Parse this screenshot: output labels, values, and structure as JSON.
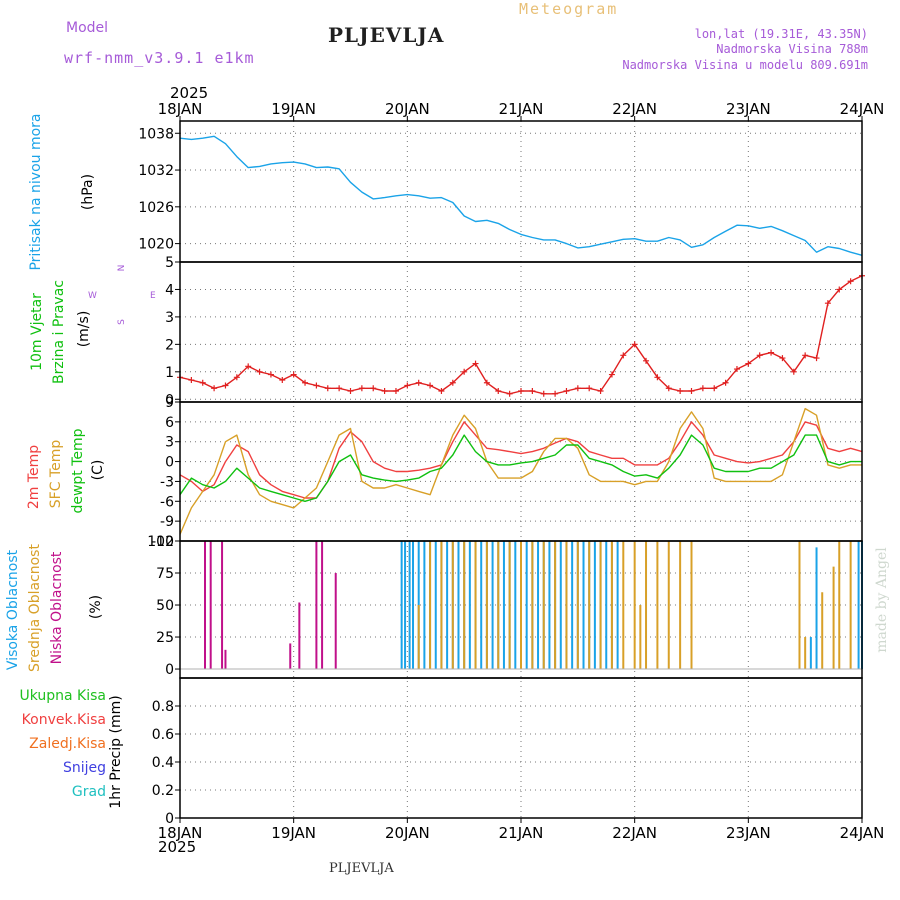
{
  "header": {
    "model_label": "Model",
    "model_name": "wrf-nmm_v3.9.1 e1km",
    "station": "PLJEVLJA",
    "product": "Meteogram",
    "lonlat": "lon,lat (19.31E, 43.35N)",
    "elevation": "Nadmorska Visina 788m",
    "model_elevation": "Nadmorska Visina u modelu 809.691m",
    "year_top": "2025",
    "year_bottom": "2025",
    "footer_station": "PLJEVLJA",
    "credit": "made by Angel"
  },
  "colors": {
    "pressure": "#1aa3e8",
    "t2m": "#f04040",
    "sfc": "#d8a028",
    "dewpt": "#10c010",
    "high_cloud": "#1aa3e8",
    "mid_cloud": "#d8a028",
    "low_cloud": "#c0108a",
    "wind_speed": "#e02020",
    "total_precip": "#20c020",
    "conv_precip": "#f04040",
    "frozen_precip": "#f07020",
    "snow": "#4040e0",
    "graupel": "#20c0c0"
  },
  "chart_data": [
    {
      "type": "line",
      "panel": "pressure",
      "ylabel_main": "Pritisak na nivou mora",
      "unit": "(hPa)",
      "x_ticks": [
        "18JAN",
        "19JAN",
        "20JAN",
        "21JAN",
        "22JAN",
        "23JAN",
        "24JAN"
      ],
      "xlim_days": [
        0,
        6
      ],
      "ylim": [
        1017,
        1040
      ],
      "y_ticks": [
        1020,
        1026,
        1032,
        1038
      ],
      "grid": true,
      "series": [
        {
          "key": "pressure",
          "x": [
            0,
            0.1,
            0.2,
            0.3,
            0.4,
            0.5,
            0.6,
            0.7,
            0.8,
            0.9,
            1.0,
            1.1,
            1.2,
            1.3,
            1.4,
            1.5,
            1.6,
            1.7,
            1.8,
            1.9,
            2.0,
            2.1,
            2.2,
            2.3,
            2.4,
            2.5,
            2.6,
            2.7,
            2.8,
            2.9,
            3.0,
            3.1,
            3.2,
            3.3,
            3.4,
            3.5,
            3.6,
            3.7,
            3.8,
            3.9,
            4.0,
            4.1,
            4.2,
            4.3,
            4.4,
            4.5,
            4.6,
            4.7,
            4.8,
            4.9,
            5.0,
            5.1,
            5.2,
            5.3,
            5.4,
            5.5,
            5.6,
            5.7,
            5.8,
            5.9,
            6.0
          ],
          "y": [
            1037.2,
            1037,
            1037.2,
            1037.5,
            1036.3,
            1034.2,
            1032.4,
            1032.6,
            1033,
            1033.2,
            1033.3,
            1033,
            1032.4,
            1032.5,
            1032.2,
            1030,
            1028.4,
            1027.3,
            1027.5,
            1027.8,
            1028,
            1027.8,
            1027.4,
            1027.5,
            1026.7,
            1024.5,
            1023.6,
            1023.8,
            1023.3,
            1022.3,
            1021.5,
            1021,
            1020.6,
            1020.6,
            1020,
            1019.3,
            1019.5,
            1019.9,
            1020.3,
            1020.7,
            1020.8,
            1020.4,
            1020.4,
            1021,
            1020.6,
            1019.4,
            1019.8,
            1021,
            1022,
            1023,
            1022.9,
            1022.5,
            1022.8,
            1022.1,
            1021.3,
            1020.5,
            1018.6,
            1019.5,
            1019.2,
            1018.6,
            1018.1
          ]
        }
      ]
    },
    {
      "type": "line",
      "panel": "wind",
      "ylabel_main": "10m Vjetar",
      "ylabel_sub": "Brzina i Pravac",
      "unit": "(m/s)",
      "compass": {
        "north": "N",
        "south": "S",
        "east": "E",
        "west": "W"
      },
      "ylim": [
        -0.1,
        5
      ],
      "y_ticks": [
        0,
        1,
        2,
        3,
        4,
        5
      ],
      "grid": true,
      "series": [
        {
          "key": "wind_speed",
          "x": [
            0,
            0.1,
            0.2,
            0.3,
            0.4,
            0.5,
            0.6,
            0.7,
            0.8,
            0.9,
            1.0,
            1.1,
            1.2,
            1.3,
            1.4,
            1.5,
            1.6,
            1.7,
            1.8,
            1.9,
            2.0,
            2.1,
            2.2,
            2.3,
            2.4,
            2.5,
            2.6,
            2.7,
            2.8,
            2.9,
            3.0,
            3.1,
            3.2,
            3.3,
            3.4,
            3.5,
            3.6,
            3.7,
            3.8,
            3.9,
            4.0,
            4.1,
            4.2,
            4.3,
            4.4,
            4.5,
            4.6,
            4.7,
            4.8,
            4.9,
            5.0,
            5.1,
            5.2,
            5.3,
            5.4,
            5.5,
            5.6,
            5.7,
            5.8,
            5.9,
            6.0
          ],
          "y": [
            0.8,
            0.7,
            0.6,
            0.4,
            0.5,
            0.8,
            1.2,
            1.0,
            0.9,
            0.7,
            0.9,
            0.6,
            0.5,
            0.4,
            0.4,
            0.3,
            0.4,
            0.4,
            0.3,
            0.3,
            0.5,
            0.6,
            0.5,
            0.3,
            0.6,
            1.0,
            1.3,
            0.6,
            0.3,
            0.2,
            0.3,
            0.3,
            0.2,
            0.2,
            0.3,
            0.4,
            0.4,
            0.3,
            0.9,
            1.6,
            2.0,
            1.4,
            0.8,
            0.4,
            0.3,
            0.3,
            0.4,
            0.4,
            0.6,
            1.1,
            1.3,
            1.6,
            1.7,
            1.5,
            1.0,
            1.6,
            1.5,
            3.5,
            4.0,
            4.3,
            4.5
          ]
        }
      ]
    },
    {
      "type": "line",
      "panel": "temperature",
      "ylabels": [
        "2m Temp",
        "SFC Temp",
        "dewpt Temp"
      ],
      "unit": "(C)",
      "ylim": [
        -12,
        9
      ],
      "y_ticks": [
        -12,
        -9,
        -6,
        -3,
        0,
        3,
        6,
        9
      ],
      "grid": true,
      "series": [
        {
          "key": "t2m",
          "x": [
            0,
            0.1,
            0.2,
            0.3,
            0.4,
            0.5,
            0.6,
            0.7,
            0.8,
            0.9,
            1.0,
            1.1,
            1.2,
            1.3,
            1.4,
            1.5,
            1.6,
            1.7,
            1.8,
            1.9,
            2.0,
            2.1,
            2.2,
            2.3,
            2.4,
            2.5,
            2.6,
            2.7,
            2.8,
            2.9,
            3.0,
            3.1,
            3.2,
            3.3,
            3.4,
            3.5,
            3.6,
            3.7,
            3.8,
            3.9,
            4.0,
            4.1,
            4.2,
            4.3,
            4.4,
            4.5,
            4.6,
            4.7,
            4.8,
            4.9,
            5.0,
            5.1,
            5.2,
            5.3,
            5.4,
            5.5,
            5.6,
            5.7,
            5.8,
            5.9,
            6.0
          ],
          "y": [
            -2,
            -3,
            -4.5,
            -3.5,
            0,
            2.5,
            1.5,
            -2,
            -3.5,
            -4.5,
            -5,
            -5.5,
            -5.5,
            -3,
            2,
            4.5,
            3,
            0,
            -1,
            -1.5,
            -1.5,
            -1.3,
            -1,
            -0.5,
            3,
            6,
            4,
            2,
            1.8,
            1.5,
            1.2,
            1.5,
            2,
            2.8,
            3.5,
            3,
            1.5,
            1,
            0.5,
            0.5,
            -0.5,
            -0.5,
            -0.5,
            0.5,
            3,
            6,
            4,
            1,
            0.5,
            0,
            -0.2,
            0,
            0.5,
            1,
            3,
            6,
            5.5,
            2,
            1.5,
            2,
            1.5
          ]
        },
        {
          "key": "sfc",
          "x": [
            0,
            0.1,
            0.2,
            0.3,
            0.4,
            0.5,
            0.6,
            0.7,
            0.8,
            0.9,
            1.0,
            1.1,
            1.2,
            1.3,
            1.4,
            1.5,
            1.6,
            1.7,
            1.8,
            1.9,
            2.0,
            2.1,
            2.2,
            2.3,
            2.4,
            2.5,
            2.6,
            2.7,
            2.8,
            2.9,
            3.0,
            3.1,
            3.2,
            3.3,
            3.4,
            3.5,
            3.6,
            3.7,
            3.8,
            3.9,
            4.0,
            4.1,
            4.2,
            4.3,
            4.4,
            4.5,
            4.6,
            4.7,
            4.8,
            4.9,
            5.0,
            5.1,
            5.2,
            5.3,
            5.4,
            5.5,
            5.6,
            5.7,
            5.8,
            5.9,
            6.0
          ],
          "y": [
            -11,
            -7,
            -4.5,
            -2,
            3,
            4,
            -2,
            -5,
            -6,
            -6.5,
            -7,
            -5.5,
            -4,
            0,
            4,
            5,
            -3,
            -4,
            -4,
            -3.5,
            -4,
            -4.5,
            -5,
            -0.5,
            4,
            7,
            5,
            0,
            -2.5,
            -2.5,
            -2.5,
            -1.5,
            1.5,
            3.5,
            3.5,
            2,
            -2,
            -3,
            -3,
            -3,
            -3.5,
            -3,
            -3,
            0,
            5,
            7.5,
            5,
            -2.5,
            -3,
            -3,
            -3,
            -3,
            -3,
            -2,
            3,
            8,
            7,
            -0.5,
            -1,
            -0.5,
            -0.5
          ]
        },
        {
          "key": "dewpt",
          "x": [
            0,
            0.1,
            0.2,
            0.3,
            0.4,
            0.5,
            0.6,
            0.7,
            0.8,
            0.9,
            1.0,
            1.1,
            1.2,
            1.3,
            1.4,
            1.5,
            1.6,
            1.7,
            1.8,
            1.9,
            2.0,
            2.1,
            2.2,
            2.3,
            2.4,
            2.5,
            2.6,
            2.7,
            2.8,
            2.9,
            3.0,
            3.1,
            3.2,
            3.3,
            3.4,
            3.5,
            3.6,
            3.7,
            3.8,
            3.9,
            4.0,
            4.1,
            4.2,
            4.3,
            4.4,
            4.5,
            4.6,
            4.7,
            4.8,
            4.9,
            5.0,
            5.1,
            5.2,
            5.3,
            5.4,
            5.5,
            5.6,
            5.7,
            5.8,
            5.9,
            6.0
          ],
          "y": [
            -5,
            -2.5,
            -3.5,
            -4,
            -3,
            -1,
            -2.5,
            -4,
            -4.5,
            -5,
            -5.5,
            -6,
            -5.5,
            -3,
            0,
            1,
            -2,
            -2.5,
            -2.8,
            -3,
            -2.8,
            -2.5,
            -1.5,
            -1,
            1,
            4,
            1.5,
            0,
            -0.5,
            -0.5,
            -0.2,
            0,
            0.5,
            1,
            2.5,
            2.5,
            0.5,
            0,
            -0.5,
            -1.5,
            -2.2,
            -2,
            -2.5,
            -1,
            1,
            4,
            2.5,
            -1,
            -1.5,
            -1.5,
            -1.5,
            -1,
            -1,
            0,
            1,
            4,
            4,
            0,
            -0.5,
            0,
            0
          ]
        }
      ]
    },
    {
      "type": "bar",
      "panel": "clouds",
      "ylabels": [
        "Visoka Oblacnost",
        "Srednja Oblacnost",
        "Niska Oblacnost"
      ],
      "unit": "(%)",
      "ylim": [
        -7,
        100
      ],
      "y_ticks": [
        0,
        25,
        50,
        75,
        100
      ],
      "grid": true,
      "series": [
        {
          "key": "low_cloud",
          "x": [
            0.22,
            0.27,
            0.37,
            0.4,
            0.97,
            1.05,
            1.2,
            1.25,
            1.37
          ],
          "y": [
            100,
            100,
            100,
            15,
            20,
            52,
            100,
            100,
            75
          ]
        },
        {
          "key": "high_cloud",
          "x": [
            1.95,
            1.98,
            2.02,
            2.05,
            2.1,
            2.15,
            2.2,
            2.25,
            2.3,
            2.35,
            2.4,
            2.45,
            2.5,
            2.55,
            2.6,
            2.65,
            2.7,
            2.75,
            2.8,
            2.85,
            2.9,
            2.95,
            3.0,
            3.05,
            3.1,
            3.15,
            3.2,
            3.25,
            3.3,
            3.35,
            3.4,
            3.45,
            3.5,
            3.55,
            3.6,
            3.65,
            3.7,
            3.75,
            3.8,
            3.85,
            5.55,
            5.6,
            5.97,
            6.0
          ],
          "y": [
            100,
            100,
            100,
            100,
            100,
            100,
            100,
            100,
            100,
            100,
            100,
            100,
            100,
            100,
            100,
            100,
            100,
            100,
            100,
            100,
            100,
            100,
            100,
            100,
            100,
            100,
            100,
            100,
            100,
            100,
            100,
            100,
            100,
            100,
            100,
            100,
            100,
            100,
            100,
            100,
            25,
            95,
            100,
            100
          ]
        },
        {
          "key": "mid_cloud",
          "x": [
            2.1,
            2.2,
            2.3,
            2.4,
            2.5,
            2.6,
            2.7,
            2.8,
            2.9,
            3.0,
            3.1,
            3.2,
            3.3,
            3.4,
            3.5,
            3.6,
            3.7,
            3.8,
            3.9,
            4.0,
            4.05,
            4.1,
            4.2,
            4.3,
            4.4,
            4.5,
            5.45,
            5.5,
            5.65,
            5.75,
            5.8,
            5.9
          ],
          "y": [
            50,
            100,
            100,
            100,
            100,
            100,
            100,
            100,
            100,
            100,
            100,
            100,
            100,
            100,
            100,
            100,
            100,
            100,
            100,
            100,
            50,
            100,
            100,
            100,
            100,
            100,
            100,
            25,
            60,
            80,
            100,
            100
          ]
        }
      ]
    },
    {
      "type": "bar",
      "panel": "precipitation",
      "legend": [
        "Ukupna Kisa",
        "Konvek.Kisa",
        "Zaledj.Kisa",
        "Snijeg",
        "Grad"
      ],
      "ylabel_main": "1hr Precip",
      "unit": "(mm)",
      "ylim": [
        0,
        1.0
      ],
      "y_ticks": [
        "0",
        "0.2",
        "0.4",
        "0.6",
        "0.8"
      ],
      "grid": true,
      "series": []
    }
  ]
}
